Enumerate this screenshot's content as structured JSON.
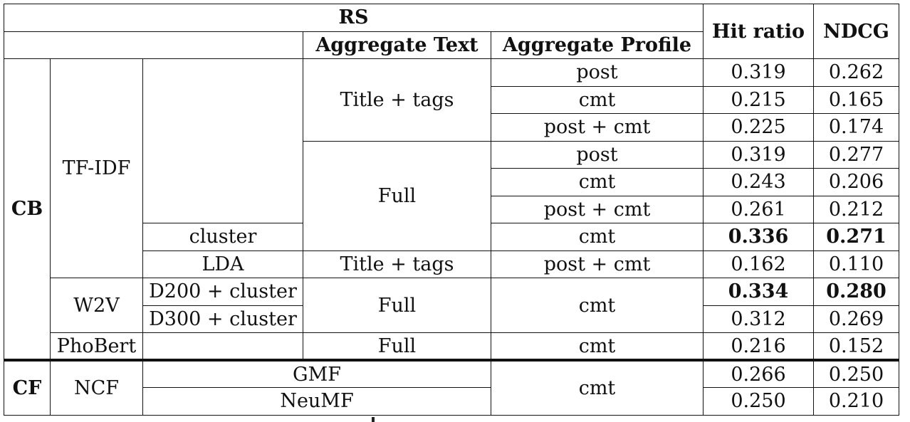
{
  "header": {
    "rs": "RS",
    "aggregate_text": "Aggregate Text",
    "aggregate_profile": "Aggregate Profile",
    "hit_ratio": "Hit ratio",
    "ndcg": "NDCG"
  },
  "groups": {
    "cb": "CB",
    "cf": "CF",
    "tfidf": "TF-IDF",
    "w2v": "W2V",
    "phobert": "PhoBert",
    "ncf": "NCF"
  },
  "rows": [
    {
      "variant": "",
      "text": "Title + tags",
      "profile": "post",
      "hit": "0.319",
      "ndcg": "0.262"
    },
    {
      "variant": "",
      "text": "Title + tags",
      "profile": "cmt",
      "hit": "0.215",
      "ndcg": "0.165"
    },
    {
      "variant": "",
      "text": "Title + tags",
      "profile": "post + cmt",
      "hit": "0.225",
      "ndcg": "0.174"
    },
    {
      "variant": "",
      "text": "Full",
      "profile": "post",
      "hit": "0.319",
      "ndcg": "0.277"
    },
    {
      "variant": "",
      "text": "Full",
      "profile": "cmt",
      "hit": "0.243",
      "ndcg": "0.206"
    },
    {
      "variant": "",
      "text": "Full",
      "profile": "post + cmt",
      "hit": "0.261",
      "ndcg": "0.212"
    },
    {
      "variant": "cluster",
      "text": "Full",
      "profile": "cmt",
      "hit": "0.336",
      "ndcg": "0.271"
    },
    {
      "variant": "LDA",
      "text": "Title + tags",
      "profile": "post + cmt",
      "hit": "0.162",
      "ndcg": "0.110"
    },
    {
      "variant": "D200 + cluster",
      "text": "Full",
      "profile": "cmt",
      "hit": "0.334",
      "ndcg": "0.280"
    },
    {
      "variant": "D300 + cluster",
      "text": "Full",
      "profile": "cmt",
      "hit": "0.312",
      "ndcg": "0.269"
    },
    {
      "variant": "",
      "text": "Full",
      "profile": "cmt",
      "hit": "0.216",
      "ndcg": "0.152"
    },
    {
      "variant": "GMF",
      "text": "",
      "profile": "cmt",
      "hit": "0.266",
      "ndcg": "0.250"
    },
    {
      "variant": "NeuMF",
      "text": "",
      "profile": "cmt",
      "hit": "0.250",
      "ndcg": "0.210"
    }
  ]
}
